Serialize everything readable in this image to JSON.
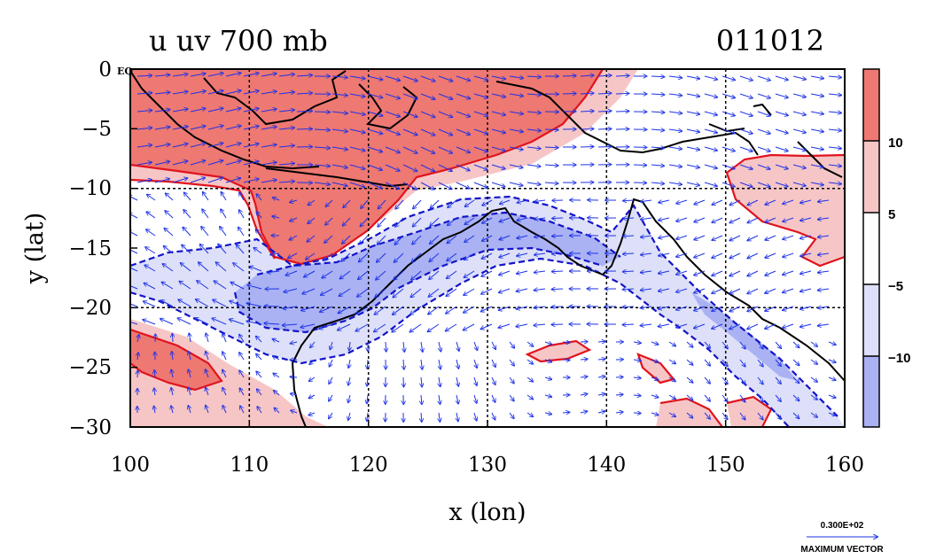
{
  "chart_data": {
    "type": "contour+vector",
    "title": "u uv 700 mb",
    "date_label": "011012",
    "xlabel": "x (lon)",
    "ylabel": "y (lat)",
    "xlim": [
      100,
      160
    ],
    "ylim": [
      -30,
      0
    ],
    "x_ticks": [
      100,
      110,
      120,
      130,
      140,
      150,
      160
    ],
    "y_ticks": [
      0,
      -5,
      -10,
      -15,
      -20,
      -25,
      -30
    ],
    "y_tick_labels": [
      "0",
      "−5",
      "−10",
      "−15",
      "−20",
      "−25",
      "−30"
    ],
    "eq_label": "EQ",
    "grid_lon": [
      110,
      120,
      130,
      140,
      150
    ],
    "grid_lat": [
      -10,
      -20
    ],
    "colorbar": {
      "levels": [
        -10,
        -5,
        5,
        10
      ],
      "labels": [
        "−10",
        "−5",
        "5",
        "10"
      ],
      "colors": [
        "#aab2f4",
        "#dde0f8",
        "#ffffff",
        "#f6c6c6",
        "#ee7872"
      ]
    },
    "vector_key": {
      "magnitude_label": "0.300E+02",
      "caption": "MAXIMUM VECTOR"
    },
    "colors": {
      "strong_positive": "#ee7872",
      "weak_positive": "#f6c6c6",
      "weak_negative": "#dde0f8",
      "strong_negative": "#aab2f4",
      "positive_contour": "#e0141e",
      "negative_contour": "#1414c8",
      "coast": "#000000",
      "vectors": "#1e32e6"
    }
  }
}
